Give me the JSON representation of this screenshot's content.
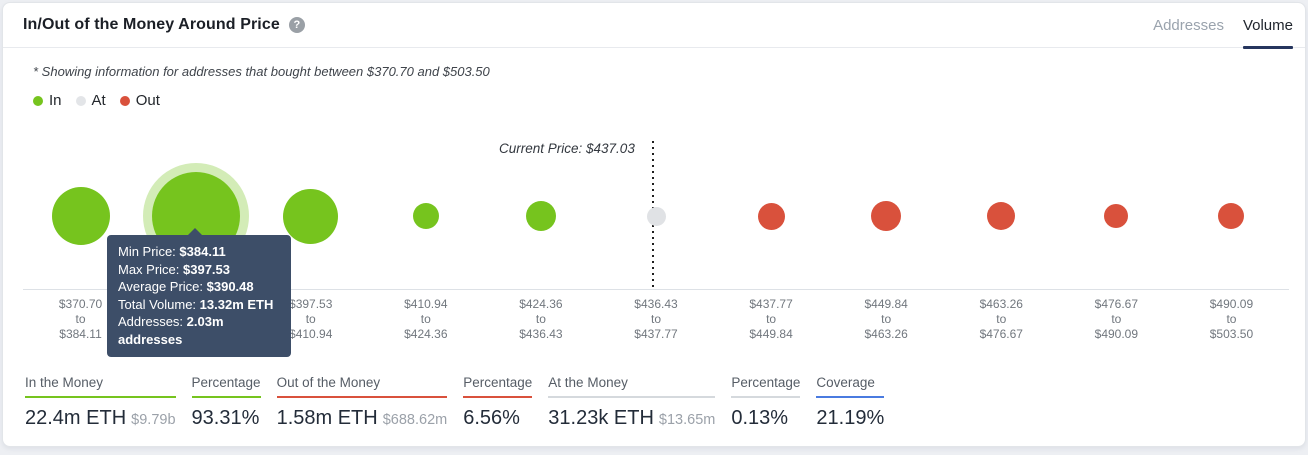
{
  "header": {
    "title": "In/Out of the Money Around Price",
    "help_icon_glyph": "?",
    "tabs": [
      {
        "label": "Addresses",
        "active": false
      },
      {
        "label": "Volume",
        "active": true
      }
    ]
  },
  "subtitle": "* Showing information for addresses that bought between $370.70 and $503.50",
  "legend": [
    {
      "label": "In",
      "color": "#76c41e"
    },
    {
      "label": "At",
      "color": "#e3e5e8"
    },
    {
      "label": "Out",
      "color": "#d9513c"
    }
  ],
  "chart_data": {
    "type": "bubble",
    "x_axis": "price range (USD)",
    "size_meaning": "volume of ETH bought in range",
    "current_price": 437.03,
    "current_price_label": "Current Price: $437.03",
    "colors": {
      "in": "#76c41e",
      "at": "#e0e2e5",
      "out": "#d9513c"
    },
    "buckets": [
      {
        "from": "$370.70",
        "to": "$384.11",
        "status": "in",
        "diameter": 58
      },
      {
        "from": "$384.11",
        "to": "$397.53",
        "status": "in",
        "diameter": 88,
        "hovered": true
      },
      {
        "from": "$397.53",
        "to": "$410.94",
        "status": "in",
        "diameter": 55
      },
      {
        "from": "$410.94",
        "to": "$424.36",
        "status": "in",
        "diameter": 26
      },
      {
        "from": "$424.36",
        "to": "$436.43",
        "status": "in",
        "diameter": 30
      },
      {
        "from": "$436.43",
        "to": "$437.77",
        "status": "at",
        "diameter": 19
      },
      {
        "from": "$437.77",
        "to": "$449.84",
        "status": "out",
        "diameter": 27
      },
      {
        "from": "$449.84",
        "to": "$463.26",
        "status": "out",
        "diameter": 30
      },
      {
        "from": "$463.26",
        "to": "$476.67",
        "status": "out",
        "diameter": 28
      },
      {
        "from": "$476.67",
        "to": "$490.09",
        "status": "out",
        "diameter": 24
      },
      {
        "from": "$490.09",
        "to": "$503.50",
        "status": "out",
        "diameter": 26
      }
    ],
    "separator_word": "to"
  },
  "tooltip": {
    "rows": [
      {
        "label": "Min Price: ",
        "value": "$384.11"
      },
      {
        "label": "Max Price: ",
        "value": "$397.53"
      },
      {
        "label": "Average Price: ",
        "value": "$390.48"
      },
      {
        "label": "Total Volume: ",
        "value": "13.32m ETH"
      },
      {
        "label": "Addresses: ",
        "value": "2.03m addresses"
      }
    ]
  },
  "stats": [
    {
      "label": "In the Money",
      "value": "22.4m ETH",
      "sub": "$9.79b",
      "underline": "#76c41e"
    },
    {
      "label": "Percentage",
      "value": "93.31%",
      "sub": "",
      "underline": "#76c41e"
    },
    {
      "label": "Out of the Money",
      "value": "1.58m ETH",
      "sub": "$688.62m",
      "underline": "#d9513c"
    },
    {
      "label": "Percentage",
      "value": "6.56%",
      "sub": "",
      "underline": "#d9513c"
    },
    {
      "label": "At the Money",
      "value": "31.23k ETH",
      "sub": "$13.65m",
      "underline": "#d5d9dd"
    },
    {
      "label": "Percentage",
      "value": "0.13%",
      "sub": "",
      "underline": "#d5d9dd"
    },
    {
      "label": "Coverage",
      "value": "21.19%",
      "sub": "",
      "underline": "#4a7be0"
    }
  ]
}
